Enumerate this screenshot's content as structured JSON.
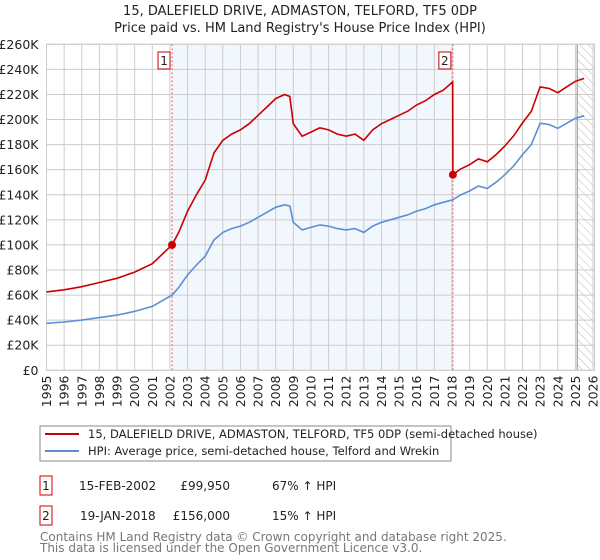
{
  "title": "15, DALEFIELD DRIVE, ADMASTON, TELFORD, TF5 0DP",
  "subtitle": "Price paid vs. HM Land Registry's House Price Index (HPI)",
  "chart_data": {
    "type": "line",
    "title": "15, DALEFIELD DRIVE, ADMASTON, TELFORD, TF5 0DP",
    "subtitle": "Price paid vs. HM Land Registry's House Price Index (HPI)",
    "xlim": [
      1995,
      2026
    ],
    "ylim": [
      0,
      260000
    ],
    "grid": true,
    "yticks": [
      0,
      20000,
      40000,
      60000,
      80000,
      100000,
      120000,
      140000,
      160000,
      180000,
      200000,
      220000,
      240000,
      260000
    ],
    "ytick_labels": [
      "£0",
      "£20K",
      "£40K",
      "£60K",
      "£80K",
      "£100K",
      "£120K",
      "£140K",
      "£160K",
      "£180K",
      "£200K",
      "£220K",
      "£240K",
      "£260K"
    ],
    "xtick_labels": [
      "1995",
      "1996",
      "1997",
      "1998",
      "1999",
      "2000",
      "2001",
      "2002",
      "2003",
      "2004",
      "2005",
      "2006",
      "2007",
      "2008",
      "2009",
      "2010",
      "2011",
      "2012",
      "2013",
      "2014",
      "2015",
      "2016",
      "2017",
      "2018",
      "2019",
      "2020",
      "2021",
      "2022",
      "2023",
      "2024",
      "2025",
      "2026"
    ],
    "shaded_range": [
      2002.12,
      2018.05
    ],
    "forecast_from": 2025.1,
    "series": [
      {
        "name": "15, DALEFIELD DRIVE, ADMASTON, TELFORD, TF5 0DP (semi-detached house)",
        "color": "#cc0000",
        "x": [
          1995,
          1996,
          1997,
          1998,
          1999,
          2000,
          2001,
          2002.12,
          2002.5,
          2003,
          2003.5,
          2004,
          2004.5,
          2005,
          2005.5,
          2006,
          2006.5,
          2007,
          2007.5,
          2008,
          2008.5,
          2008.8,
          2009,
          2009.5,
          2010,
          2010.5,
          2011,
          2011.5,
          2012,
          2012.5,
          2013,
          2013.5,
          2014,
          2014.5,
          2015,
          2015.5,
          2016,
          2016.5,
          2017,
          2017.5,
          2018.04,
          2018.05,
          2018.5,
          2019,
          2019.5,
          2020,
          2020.5,
          2021,
          2021.5,
          2022,
          2022.5,
          2023,
          2023.5,
          2024,
          2024.5,
          2025,
          2025.5
        ],
        "values": [
          62500,
          64200,
          66700,
          70000,
          73400,
          78300,
          85000,
          99950,
          110000,
          126700,
          140000,
          151700,
          173400,
          183400,
          188400,
          191700,
          196700,
          203400,
          210000,
          216700,
          220000,
          218400,
          196700,
          186700,
          190000,
          193400,
          191700,
          188400,
          186700,
          188400,
          183400,
          191700,
          196700,
          200000,
          203400,
          206700,
          211700,
          215000,
          220000,
          223400,
          230000,
          156000,
          160600,
          164000,
          168600,
          166300,
          172000,
          179000,
          187000,
          197300,
          206500,
          226000,
          224800,
          221400,
          226000,
          230500,
          232800
        ]
      },
      {
        "name": "HPI: Average price, semi-detached house, Telford and Wrekin",
        "color": "#5b8fd4",
        "x": [
          1995,
          1996,
          1997,
          1998,
          1999,
          2000,
          2001,
          2002.12,
          2002.5,
          2003,
          2003.5,
          2004,
          2004.5,
          2005,
          2005.5,
          2006,
          2006.5,
          2007,
          2007.5,
          2008,
          2008.5,
          2008.8,
          2009,
          2009.5,
          2010,
          2010.5,
          2011,
          2011.5,
          2012,
          2012.5,
          2013,
          2013.5,
          2014,
          2014.5,
          2015,
          2015.5,
          2016,
          2016.5,
          2017,
          2017.5,
          2018.05,
          2018.5,
          2019,
          2019.5,
          2020,
          2020.5,
          2021,
          2021.5,
          2022,
          2022.5,
          2023,
          2023.5,
          2024,
          2024.5,
          2025,
          2025.5
        ],
        "values": [
          37500,
          38500,
          40000,
          42000,
          44000,
          47000,
          51000,
          60000,
          66000,
          76000,
          84000,
          91000,
          104000,
          110000,
          113000,
          115000,
          118000,
          122000,
          126000,
          130000,
          132000,
          131000,
          118000,
          112000,
          114000,
          116000,
          115000,
          113000,
          112000,
          113000,
          110000,
          115000,
          118000,
          120000,
          122000,
          124000,
          127000,
          129000,
          132000,
          134000,
          136000,
          140000,
          143000,
          147000,
          145000,
          150000,
          156000,
          163000,
          172000,
          180000,
          197000,
          196000,
          193000,
          197000,
          201000,
          203000
        ]
      }
    ],
    "sales": [
      {
        "id": "1",
        "x": 2002.12,
        "price": 99950
      },
      {
        "id": "2",
        "x": 2018.05,
        "price": 156000
      }
    ],
    "legend_position": "below"
  },
  "legend": {
    "property": "15, DALEFIELD DRIVE, ADMASTON, TELFORD, TF5 0DP (semi-detached house)",
    "hpi": "HPI: Average price, semi-detached house, Telford and Wrekin"
  },
  "transactions": [
    {
      "id": "1",
      "date": "15-FEB-2002",
      "price": "£99,950",
      "hpi": "67% ↑ HPI"
    },
    {
      "id": "2",
      "date": "19-JAN-2018",
      "price": "£156,000",
      "hpi": "15% ↑ HPI"
    }
  ],
  "footer": {
    "line1": "Contains HM Land Registry data © Crown copyright and database right 2025.",
    "line2": "This data is licensed under the Open Government Licence v3.0."
  }
}
